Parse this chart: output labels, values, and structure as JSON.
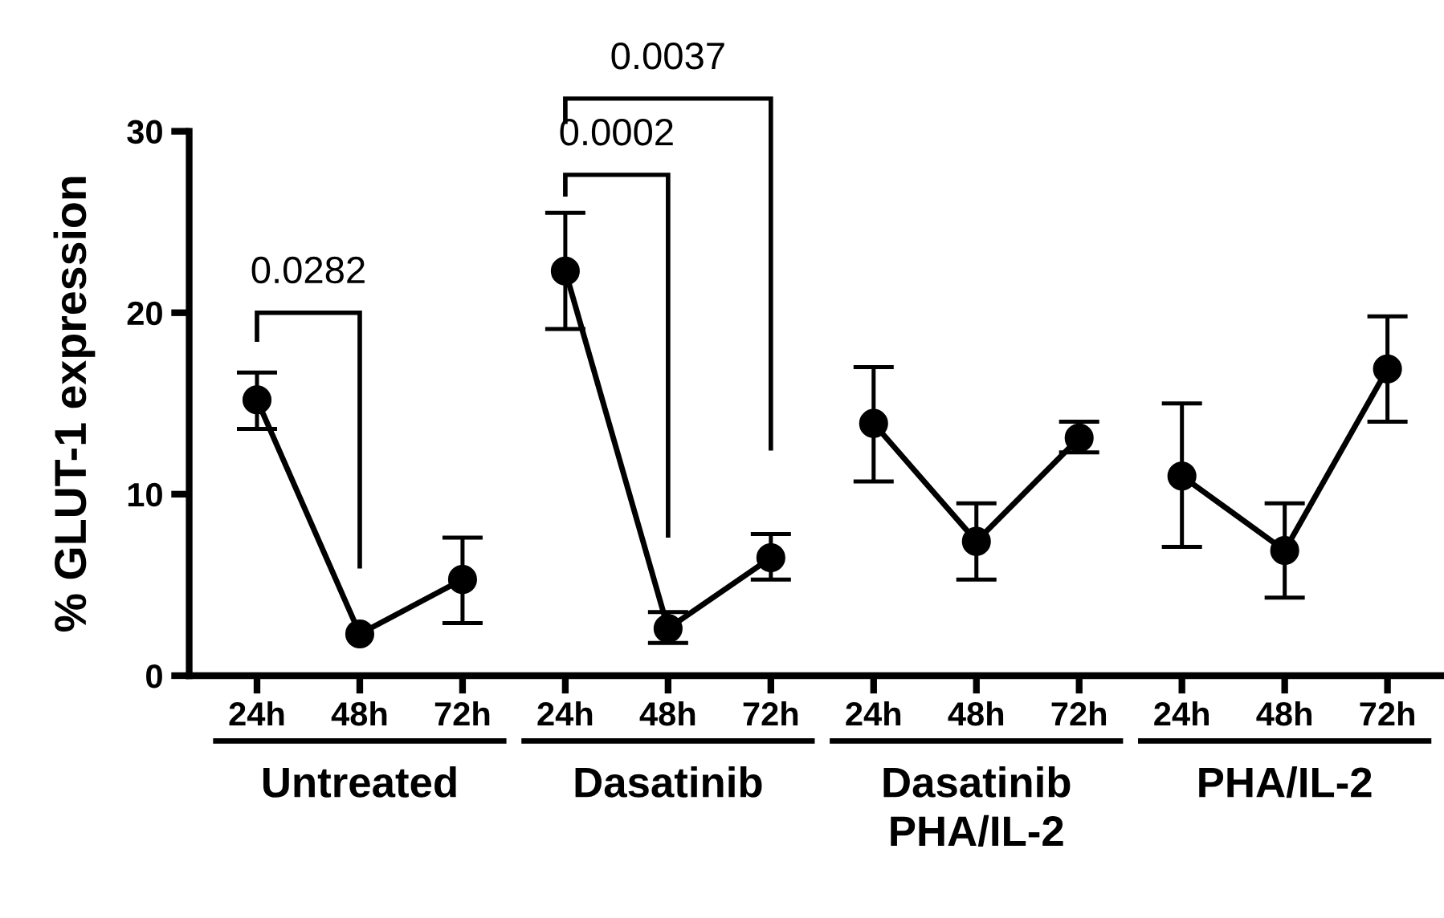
{
  "chart_data": {
    "type": "line",
    "ylabel": "% GLUT-1 expression",
    "categories": [
      "24h",
      "48h",
      "72h",
      "24h",
      "48h",
      "72h",
      "24h",
      "48h",
      "72h",
      "24h",
      "48h",
      "72h"
    ],
    "series": [
      {
        "color": "#000000",
        "values": [
          15.2,
          2.3,
          5.3,
          null,
          null,
          null,
          null,
          null,
          null,
          null,
          null,
          null
        ],
        "errors": [
          [
            13.6,
            16.7
          ],
          null,
          [
            2.9,
            7.6
          ],
          null,
          null,
          null,
          null,
          null,
          null,
          null,
          null,
          null
        ]
      },
      {
        "color": "#000000",
        "values": [
          null,
          null,
          null,
          22.3,
          2.6,
          6.5,
          null,
          null,
          null,
          null,
          null,
          null
        ],
        "errors": [
          null,
          null,
          null,
          [
            19.1,
            25.5
          ],
          [
            1.8,
            3.5
          ],
          [
            5.3,
            7.8
          ],
          null,
          null,
          null,
          null,
          null,
          null
        ]
      },
      {
        "color": "#000000",
        "values": [
          null,
          null,
          null,
          null,
          null,
          null,
          13.9,
          7.4,
          13.1,
          null,
          null,
          null
        ],
        "errors": [
          null,
          null,
          null,
          null,
          null,
          null,
          [
            10.7,
            17.0
          ],
          [
            5.3,
            9.5
          ],
          [
            12.3,
            14.0
          ],
          null,
          null,
          null
        ]
      },
      {
        "color": "#000000",
        "values": [
          null,
          null,
          null,
          null,
          null,
          null,
          null,
          null,
          null,
          11.0,
          6.9,
          16.9
        ],
        "errors": [
          null,
          null,
          null,
          null,
          null,
          null,
          null,
          null,
          null,
          [
            7.1,
            15.0
          ],
          [
            4.3,
            9.5
          ],
          [
            14.0,
            19.8
          ]
        ]
      }
    ],
    "ylim": [
      0,
      30
    ],
    "yticks": [
      0,
      10,
      20,
      30
    ],
    "grid": false,
    "legend": false,
    "marker": "circle",
    "line_style": "solid",
    "annotations": [
      "0.0282",
      "0.0002",
      "0.0037",
      "Untreated",
      "Dasatinib",
      "Dasatinib\nPHA/IL-2",
      "PHA/IL-2"
    ]
  }
}
